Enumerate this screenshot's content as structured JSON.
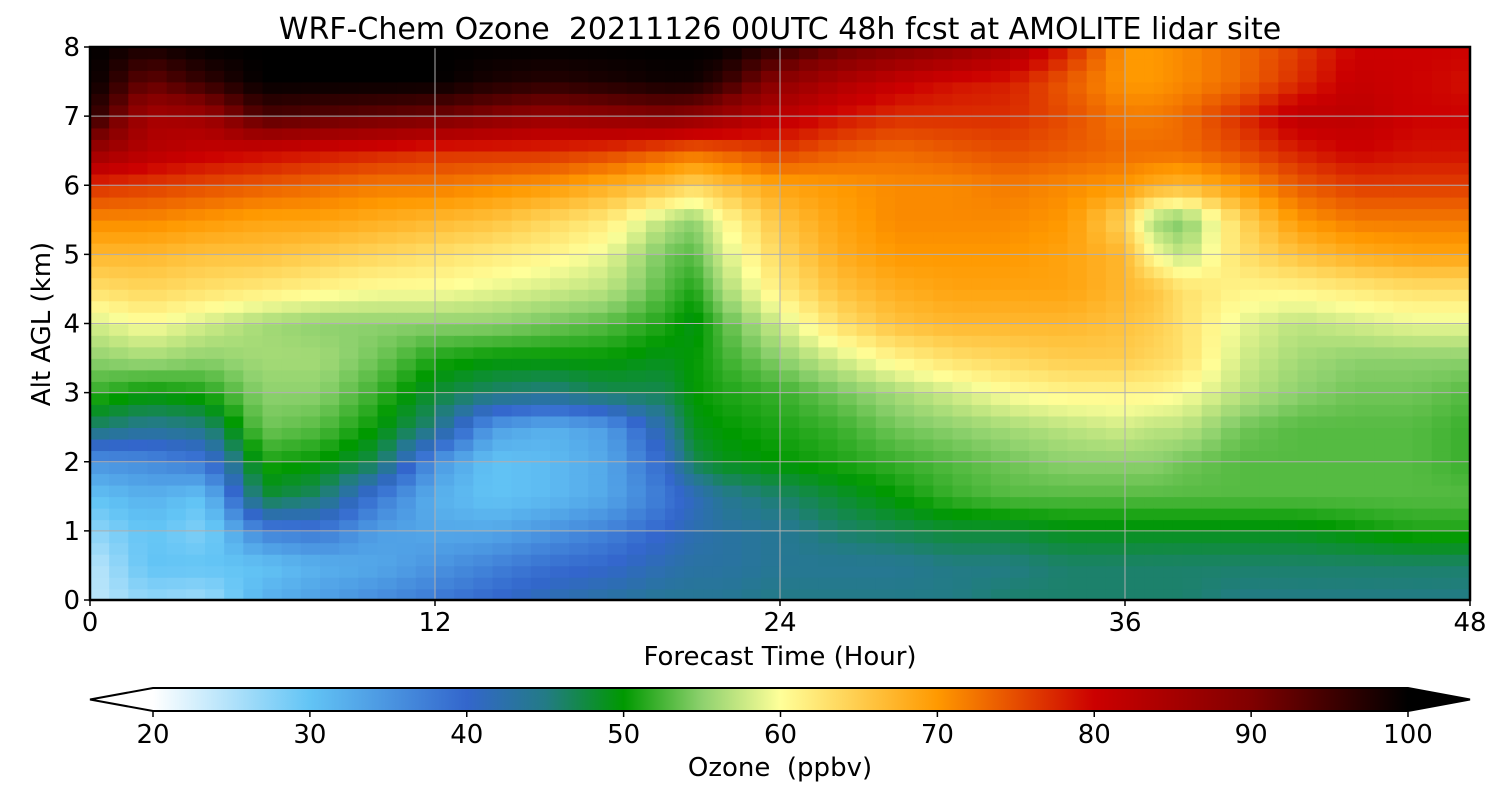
{
  "chart_data": {
    "type": "heatmap",
    "title": "WRF-Chem Ozone  20211126 00UTC 48h fcst at AMOLITE lidar site",
    "xlabel": "Forecast Time (Hour)",
    "ylabel": "Alt AGL (km)",
    "xlim": [
      0,
      48
    ],
    "ylim": [
      0,
      8
    ],
    "x_ticks": [
      "0",
      "12",
      "24",
      "36",
      "48"
    ],
    "y_ticks": [
      "0",
      "1",
      "2",
      "3",
      "4",
      "5",
      "6",
      "7",
      "8"
    ],
    "grid": true,
    "colorbar": {
      "label": "Ozone  (ppbv)",
      "orientation": "horizontal",
      "placement": "bottom",
      "min": 20,
      "max": 100,
      "extend": "both",
      "ticks": [
        "20",
        "30",
        "40",
        "50",
        "60",
        "70",
        "80",
        "90",
        "100"
      ],
      "stops": [
        {
          "v": 20,
          "c": "#ffffff"
        },
        {
          "v": 30,
          "c": "#62c4f5"
        },
        {
          "v": 40,
          "c": "#3366cc"
        },
        {
          "v": 45,
          "c": "#237b86"
        },
        {
          "v": 50,
          "c": "#009900"
        },
        {
          "v": 55,
          "c": "#8ed16e"
        },
        {
          "v": 60,
          "c": "#ffff99"
        },
        {
          "v": 70,
          "c": "#ff9900"
        },
        {
          "v": 80,
          "c": "#cc0000"
        },
        {
          "v": 90,
          "c": "#800000"
        },
        {
          "v": 100,
          "c": "#000000"
        }
      ]
    },
    "x": [
      0,
      2,
      4,
      6,
      8,
      10,
      12,
      14,
      16,
      18,
      20,
      21,
      22,
      24,
      26,
      28,
      30,
      32,
      34,
      36,
      37,
      38,
      40,
      42,
      44,
      46,
      48
    ],
    "y": [
      0,
      0.5,
      1,
      1.5,
      2,
      2.5,
      3,
      3.5,
      4,
      4.5,
      5,
      5.5,
      6,
      6.5,
      7,
      7.5,
      8
    ],
    "z_units": "ppbv",
    "z": [
      [
        24,
        27,
        26,
        32,
        34,
        36,
        38,
        40,
        42,
        43,
        44,
        44,
        44,
        45,
        45,
        45,
        45,
        46,
        46,
        46,
        46,
        46,
        45,
        45,
        45,
        45,
        45
      ],
      [
        24,
        30,
        30,
        30,
        32,
        33,
        35,
        37,
        39,
        40,
        42,
        43,
        43,
        44,
        44,
        44,
        45,
        45,
        46,
        46,
        46,
        46,
        46,
        46,
        46,
        46,
        46
      ],
      [
        27,
        30,
        28,
        37,
        38,
        34,
        33,
        33,
        35,
        37,
        40,
        42,
        43,
        44,
        46,
        47,
        48,
        48,
        49,
        49,
        49,
        49,
        49,
        49,
        50,
        51,
        51
      ],
      [
        30,
        32,
        30,
        48,
        46,
        38,
        32,
        30,
        31,
        33,
        38,
        41,
        44,
        46,
        48,
        50,
        52,
        53,
        53,
        53,
        53,
        53,
        53,
        53,
        53,
        53,
        53
      ],
      [
        35,
        36,
        38,
        51,
        50,
        47,
        35,
        30,
        31,
        33,
        40,
        47,
        49,
        50,
        51,
        52,
        53,
        54,
        55,
        55,
        55,
        54,
        53,
        53,
        53,
        53,
        52
      ],
      [
        46,
        44,
        45,
        54,
        53,
        50,
        45,
        34,
        32,
        34,
        43,
        49,
        50,
        51,
        52,
        54,
        55,
        56,
        57,
        58,
        57,
        57,
        54,
        53,
        53,
        53,
        52
      ],
      [
        52,
        50,
        51,
        55,
        55,
        52,
        48,
        46,
        45,
        47,
        47,
        50,
        51,
        52,
        54,
        56,
        58,
        60,
        61,
        61,
        61,
        60,
        57,
        55,
        54,
        54,
        53
      ],
      [
        55,
        56,
        55,
        56,
        56,
        54,
        51,
        50,
        50,
        50,
        49,
        50,
        52,
        55,
        58,
        61,
        63,
        64,
        65,
        65,
        64,
        63,
        58,
        56,
        55,
        55,
        55
      ],
      [
        58,
        60,
        58,
        56,
        55,
        55,
        55,
        55,
        54,
        53,
        51,
        49,
        53,
        58,
        63,
        66,
        67,
        67,
        67,
        66,
        65,
        63,
        59,
        57,
        58,
        59,
        59
      ],
      [
        63,
        64,
        63,
        62,
        61,
        60,
        60,
        59,
        58,
        57,
        53,
        51,
        56,
        62,
        66,
        68,
        69,
        69,
        69,
        67,
        66,
        63,
        61,
        61,
        62,
        63,
        63
      ],
      [
        67,
        67,
        66,
        66,
        65,
        64,
        63,
        62,
        61,
        59,
        54,
        53,
        58,
        64,
        68,
        70,
        70,
        70,
        69,
        67,
        60,
        57,
        63,
        66,
        68,
        69,
        69
      ],
      [
        71,
        71,
        70,
        69,
        69,
        68,
        67,
        66,
        64,
        62,
        57,
        55,
        60,
        66,
        69,
        71,
        71,
        71,
        70,
        64,
        56,
        54,
        64,
        70,
        72,
        72,
        72
      ],
      [
        77,
        76,
        75,
        74,
        73,
        72,
        72,
        71,
        70,
        68,
        66,
        64,
        66,
        69,
        70,
        71,
        71,
        72,
        71,
        70,
        68,
        67,
        70,
        74,
        76,
        76,
        76
      ],
      [
        87,
        83,
        81,
        80,
        79,
        78,
        77,
        77,
        77,
        76,
        74,
        73,
        74,
        76,
        74,
        73,
        74,
        75,
        74,
        73,
        73,
        73,
        75,
        78,
        80,
        79,
        79
      ],
      [
        97,
        85,
        86,
        94,
        93,
        92,
        91,
        89,
        87,
        88,
        89,
        88,
        86,
        82,
        79,
        77,
        77,
        77,
        75,
        72,
        72,
        73,
        77,
        82,
        82,
        80,
        80
      ],
      [
        100,
        92,
        96,
        100,
        100,
        100,
        100,
        98,
        97,
        98,
        99,
        99,
        96,
        88,
        84,
        81,
        79,
        78,
        74,
        70,
        70,
        71,
        73,
        77,
        81,
        80,
        79
      ],
      [
        100,
        98,
        100,
        100,
        100,
        100,
        100,
        100,
        100,
        100,
        100,
        100,
        100,
        96,
        92,
        90,
        88,
        85,
        78,
        70,
        70,
        71,
        73,
        76,
        80,
        80,
        80
      ]
    ]
  }
}
